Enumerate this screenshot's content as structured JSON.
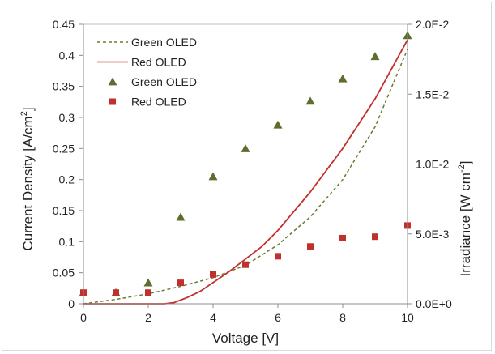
{
  "chart_data": {
    "type": "line",
    "x_axis": {
      "label": "Voltage [V]",
      "range": [
        0,
        10
      ],
      "ticks": [
        "0",
        "2",
        "4",
        "6",
        "8",
        "10"
      ],
      "tick_values": [
        0,
        2,
        4,
        6,
        8,
        10
      ]
    },
    "y_left": {
      "label_main": "Current Density [A/cm",
      "label_sup": "2",
      "label_end": "]",
      "range": [
        0,
        0.45
      ],
      "ticks": [
        "0",
        "0.05",
        "0.1",
        "0.15",
        "0.2",
        "0.25",
        "0.3",
        "0.35",
        "0.4",
        "0.45"
      ],
      "tick_values": [
        0,
        0.05,
        0.1,
        0.15,
        0.2,
        0.25,
        0.3,
        0.35,
        0.4,
        0.45
      ]
    },
    "y_right": {
      "label_main": "Irradiance [W cm",
      "label_sup": "-2",
      "label_end": "]",
      "range": [
        0,
        0.02
      ],
      "ticks": [
        "0.0E+0",
        "5.0E-3",
        "1.0E-2",
        "1.5E-2",
        "2.0E-2"
      ],
      "tick_values": [
        0,
        0.005,
        0.01,
        0.015,
        0.02
      ]
    },
    "legend_position": "top-left",
    "series": [
      {
        "name": "Green OLED",
        "kind": "line",
        "style": "dashed",
        "axis": "left",
        "color": "#6b7a2e",
        "x": [
          0,
          1,
          2,
          3,
          4,
          5,
          6,
          7,
          8,
          9,
          10
        ],
        "y": [
          0.0,
          0.007,
          0.016,
          0.028,
          0.042,
          0.062,
          0.095,
          0.14,
          0.2,
          0.285,
          0.41
        ]
      },
      {
        "name": "Red OLED",
        "kind": "line",
        "style": "solid",
        "axis": "left",
        "color": "#c0302c",
        "x": [
          0,
          1,
          2,
          2.5,
          2.8,
          3.2,
          3.6,
          4,
          4.5,
          5,
          5.5,
          6,
          7,
          8,
          9,
          10
        ],
        "y": [
          0,
          0,
          0,
          0,
          0.002,
          0.01,
          0.02,
          0.034,
          0.052,
          0.072,
          0.092,
          0.118,
          0.18,
          0.25,
          0.33,
          0.425
        ]
      },
      {
        "name": "Green OLED",
        "kind": "scatter",
        "marker": "triangle",
        "axis": "right",
        "color": "#5c6e2e",
        "x": [
          0,
          1,
          2,
          3,
          4,
          5,
          6,
          7,
          8,
          9,
          10
        ],
        "y": [
          0.0008,
          0.0008,
          0.0015,
          0.0062,
          0.0091,
          0.0111,
          0.0128,
          0.0145,
          0.0161,
          0.0177,
          0.0192
        ]
      },
      {
        "name": "Red OLED",
        "kind": "scatter",
        "marker": "square",
        "axis": "right",
        "color": "#c0302c",
        "x": [
          0,
          1,
          2,
          3,
          4,
          5,
          6,
          7,
          8,
          9,
          10
        ],
        "y": [
          0.0008,
          0.0008,
          0.0008,
          0.0015,
          0.0021,
          0.0028,
          0.0034,
          0.0041,
          0.0047,
          0.0048,
          0.0056
        ]
      }
    ]
  }
}
